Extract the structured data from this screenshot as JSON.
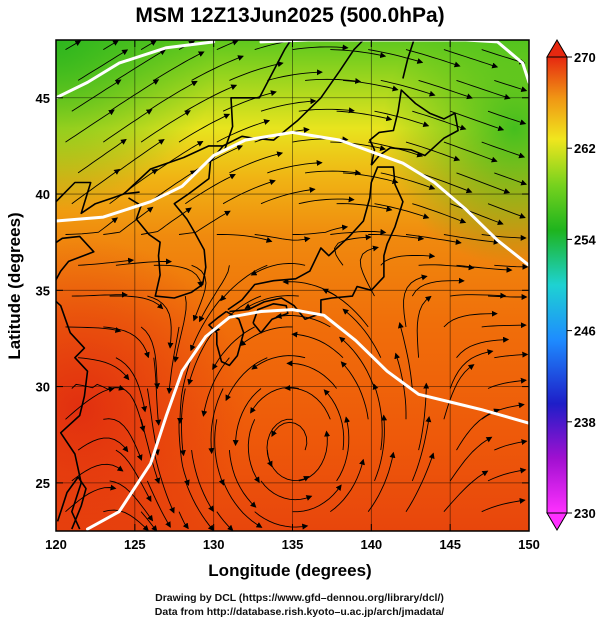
{
  "title": "MSM 12Z13Jun2025 (500.0hPa)",
  "x_axis": {
    "label": "Longitude (degrees)",
    "ticks": [
      "120",
      "125",
      "130",
      "135",
      "140",
      "145",
      "150"
    ]
  },
  "y_axis": {
    "label": "Latitude  (degrees)",
    "ticks": [
      "25",
      "30",
      "35",
      "40",
      "45"
    ]
  },
  "colorbar": {
    "ticks": [
      "230",
      "238",
      "246",
      "254",
      "262",
      "270"
    ],
    "min": 230,
    "max": 270
  },
  "credits": {
    "line1": "Drawing by DCL (https://www.gfd–dennou.org/library/dcl/)",
    "line2": "Data from http://database.rish.kyoto–u.ac.jp/arch/jmadata/"
  },
  "map": {
    "lon_range": [
      120,
      150
    ],
    "lat_range": [
      22.5,
      48
    ],
    "grid_lon": [
      120,
      125,
      130,
      135,
      140,
      145,
      150
    ],
    "grid_lat": [
      25,
      30,
      35,
      40,
      45
    ],
    "colors": {
      "cold": "#1eb41e",
      "mid": "#f0e61e",
      "warm": "#f06e0a",
      "hot": "#e62810",
      "contour": "#ffffff",
      "streamline": "#000000"
    },
    "low_center": {
      "lon": 135,
      "lat": 26.5
    },
    "contours": [
      {
        "name": "north-contour",
        "points": [
          [
            120,
            38.6
          ],
          [
            123,
            38.8
          ],
          [
            126,
            39.6
          ],
          [
            128,
            40.4
          ],
          [
            130,
            42.0
          ],
          [
            132,
            42.8
          ],
          [
            135,
            43.2
          ],
          [
            138,
            42.8
          ],
          [
            140,
            42.2
          ],
          [
            142,
            41.6
          ],
          [
            144,
            40.6
          ],
          [
            146,
            39.2
          ],
          [
            148,
            37.6
          ],
          [
            150,
            36.3
          ]
        ]
      },
      {
        "name": "northeast-contour",
        "points": [
          [
            133,
            47.9
          ],
          [
            136,
            48.0
          ],
          [
            142,
            48.0
          ],
          [
            146,
            48.0
          ],
          [
            148,
            47.9
          ],
          [
            149.6,
            46.8
          ],
          [
            150,
            45.8
          ]
        ]
      },
      {
        "name": "northwest-contour",
        "points": [
          [
            120,
            45.0
          ],
          [
            122,
            45.8
          ],
          [
            124,
            46.8
          ],
          [
            127,
            47.6
          ],
          [
            130,
            47.9
          ]
        ]
      },
      {
        "name": "south-contour",
        "points": [
          [
            122,
            22.6
          ],
          [
            124,
            23.5
          ],
          [
            126,
            26.0
          ],
          [
            127,
            28.5
          ],
          [
            128,
            30.8
          ],
          [
            129.5,
            32.6
          ],
          [
            131,
            33.6
          ],
          [
            133,
            33.9
          ],
          [
            135,
            34.0
          ],
          [
            137,
            33.7
          ],
          [
            139,
            32.4
          ],
          [
            141,
            30.8
          ],
          [
            143,
            29.6
          ],
          [
            145,
            29.2
          ],
          [
            147,
            28.8
          ],
          [
            150,
            28.1
          ]
        ]
      }
    ],
    "coastlines": [
      {
        "name": "japan-honshu",
        "points": [
          [
            130.9,
            34.0
          ],
          [
            131.8,
            34.5
          ],
          [
            132.6,
            35.3
          ],
          [
            133.8,
            35.5
          ],
          [
            135.2,
            35.6
          ],
          [
            136.1,
            36.0
          ],
          [
            136.8,
            37.2
          ],
          [
            137.3,
            36.8
          ],
          [
            138.6,
            37.8
          ],
          [
            139.5,
            38.6
          ],
          [
            139.9,
            39.8
          ],
          [
            140.0,
            40.6
          ],
          [
            140.4,
            41.4
          ],
          [
            141.4,
            41.4
          ],
          [
            141.5,
            40.5
          ],
          [
            142.0,
            39.6
          ],
          [
            141.5,
            38.3
          ],
          [
            141.0,
            37.4
          ],
          [
            140.8,
            36.8
          ],
          [
            140.8,
            35.7
          ],
          [
            140.0,
            35.0
          ],
          [
            139.1,
            35.2
          ],
          [
            138.8,
            34.7
          ],
          [
            137.5,
            34.6
          ],
          [
            136.8,
            34.5
          ],
          [
            136.8,
            33.8
          ],
          [
            135.8,
            33.5
          ],
          [
            135.1,
            34.2
          ],
          [
            134.3,
            34.6
          ],
          [
            133.2,
            34.4
          ],
          [
            132.2,
            34.0
          ],
          [
            131.0,
            33.9
          ]
        ]
      },
      {
        "name": "japan-kyushu",
        "points": [
          [
            130.8,
            33.9
          ],
          [
            131.6,
            33.5
          ],
          [
            131.9,
            32.8
          ],
          [
            131.5,
            31.6
          ],
          [
            131.0,
            31.1
          ],
          [
            130.5,
            31.3
          ],
          [
            130.2,
            32.2
          ],
          [
            130.2,
            32.8
          ],
          [
            129.7,
            33.2
          ],
          [
            130.3,
            33.6
          ],
          [
            130.8,
            33.9
          ]
        ]
      },
      {
        "name": "japan-shikoku",
        "points": [
          [
            132.5,
            33.3
          ],
          [
            133.0,
            32.8
          ],
          [
            133.7,
            33.5
          ],
          [
            134.7,
            33.8
          ],
          [
            134.6,
            34.2
          ],
          [
            133.8,
            34.3
          ],
          [
            132.8,
            34.0
          ],
          [
            132.5,
            33.3
          ]
        ]
      },
      {
        "name": "japan-hokkaido",
        "points": [
          [
            140.0,
            41.5
          ],
          [
            140.2,
            42.3
          ],
          [
            139.9,
            42.8
          ],
          [
            140.5,
            43.2
          ],
          [
            141.4,
            43.3
          ],
          [
            141.7,
            44.3
          ],
          [
            141.9,
            45.4
          ],
          [
            142.8,
            44.7
          ],
          [
            143.7,
            44.2
          ],
          [
            144.6,
            43.9
          ],
          [
            145.3,
            44.2
          ],
          [
            145.5,
            43.3
          ],
          [
            144.6,
            42.9
          ],
          [
            143.4,
            42.0
          ],
          [
            142.5,
            42.3
          ],
          [
            141.2,
            42.4
          ],
          [
            140.5,
            42.0
          ],
          [
            140.0,
            41.5
          ]
        ]
      },
      {
        "name": "korea",
        "points": [
          [
            124.6,
            39.8
          ],
          [
            125.4,
            39.4
          ],
          [
            125.1,
            38.7
          ],
          [
            125.9,
            37.9
          ],
          [
            126.6,
            37.5
          ],
          [
            126.5,
            36.8
          ],
          [
            126.6,
            35.8
          ],
          [
            126.3,
            34.7
          ],
          [
            127.5,
            34.6
          ],
          [
            128.6,
            34.9
          ],
          [
            129.3,
            35.3
          ],
          [
            129.5,
            36.2
          ],
          [
            129.4,
            37.1
          ],
          [
            128.8,
            38.0
          ],
          [
            128.3,
            38.7
          ],
          [
            127.5,
            39.5
          ],
          [
            128.4,
            40.0
          ],
          [
            129.7,
            40.8
          ],
          [
            129.8,
            41.7
          ],
          [
            130.6,
            42.5
          ]
        ]
      },
      {
        "name": "sakhalin",
        "points": [
          [
            142.0,
            46.0
          ],
          [
            142.3,
            47.0
          ],
          [
            142.7,
            48.0
          ]
        ]
      },
      {
        "name": "asia-coast",
        "points": [
          [
            121.5,
            22.6
          ],
          [
            121.0,
            23.5
          ],
          [
            121.6,
            25.0
          ],
          [
            121.2,
            26.5
          ],
          [
            120.3,
            27.6
          ],
          [
            121.5,
            28.5
          ],
          [
            121.8,
            29.5
          ],
          [
            122.0,
            30.8
          ],
          [
            121.2,
            31.5
          ],
          [
            121.8,
            32.0
          ],
          [
            120.9,
            32.8
          ],
          [
            120.3,
            34.2
          ],
          [
            119.5,
            34.8
          ],
          [
            120.3,
            36.0
          ],
          [
            120.8,
            36.5
          ],
          [
            122.4,
            37.0
          ],
          [
            121.5,
            37.8
          ],
          [
            120.4,
            37.7
          ],
          [
            119.3,
            37.1
          ],
          [
            119.0,
            37.5
          ],
          [
            119.2,
            38.6
          ],
          [
            120.0,
            39.6
          ],
          [
            121.2,
            40.6
          ],
          [
            122.2,
            40.6
          ],
          [
            121.6,
            39.0
          ],
          [
            122.5,
            39.5
          ],
          [
            123.6,
            39.8
          ],
          [
            124.3,
            40.0
          ],
          [
            125.3,
            40.1
          ]
        ]
      },
      {
        "name": "taiwan",
        "points": [
          [
            120.1,
            23.0
          ],
          [
            120.7,
            24.5
          ],
          [
            121.4,
            25.3
          ],
          [
            121.9,
            24.7
          ],
          [
            121.6,
            23.8
          ],
          [
            121.0,
            22.6
          ]
        ]
      },
      {
        "name": "china-korea-border",
        "points": [
          [
            124.3,
            40.0
          ],
          [
            126.0,
            41.3
          ],
          [
            128.1,
            41.9
          ],
          [
            129.7,
            42.5
          ],
          [
            130.6,
            42.5
          ]
        ]
      },
      {
        "name": "china-russia-border",
        "points": [
          [
            130.7,
            42.3
          ],
          [
            131.2,
            43.5
          ],
          [
            131.1,
            45.0
          ],
          [
            132.9,
            45.0
          ],
          [
            134.5,
            47.5
          ],
          [
            134.9,
            48.0
          ]
        ]
      },
      {
        "name": "russia-coast",
        "points": [
          [
            130.6,
            42.5
          ],
          [
            131.8,
            43.0
          ],
          [
            132.5,
            42.9
          ],
          [
            133.8,
            42.8
          ],
          [
            135.3,
            43.8
          ],
          [
            136.8,
            45.0
          ],
          [
            138.0,
            46.4
          ],
          [
            138.9,
            47.5
          ],
          [
            139.5,
            48.0
          ]
        ]
      }
    ]
  }
}
